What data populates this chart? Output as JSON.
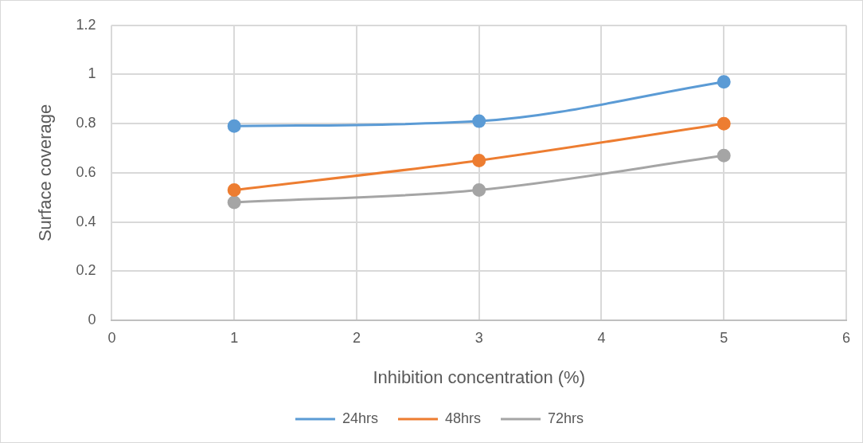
{
  "chart_data": {
    "type": "line",
    "xlabel": "Inhibition concentration (%)",
    "ylabel": "Surface coverage",
    "x": [
      1,
      3,
      5
    ],
    "series": [
      {
        "name": "24hrs",
        "color": "#5b9bd5",
        "values": [
          0.79,
          0.81,
          0.97
        ]
      },
      {
        "name": "48hrs",
        "color": "#ed7d31",
        "values": [
          0.53,
          0.65,
          0.8
        ]
      },
      {
        "name": "72hrs",
        "color": "#a5a5a5",
        "values": [
          0.48,
          0.53,
          0.67
        ]
      }
    ],
    "xlim": [
      0,
      6
    ],
    "xticks": [
      0,
      1,
      2,
      3,
      4,
      5,
      6
    ],
    "ylim": [
      0,
      1.2
    ],
    "yticks": [
      0,
      0.2,
      0.4,
      0.6,
      0.8,
      1,
      1.2
    ],
    "grid": true,
    "legend": "bottom",
    "marker": "circle",
    "line_style": "solid"
  }
}
